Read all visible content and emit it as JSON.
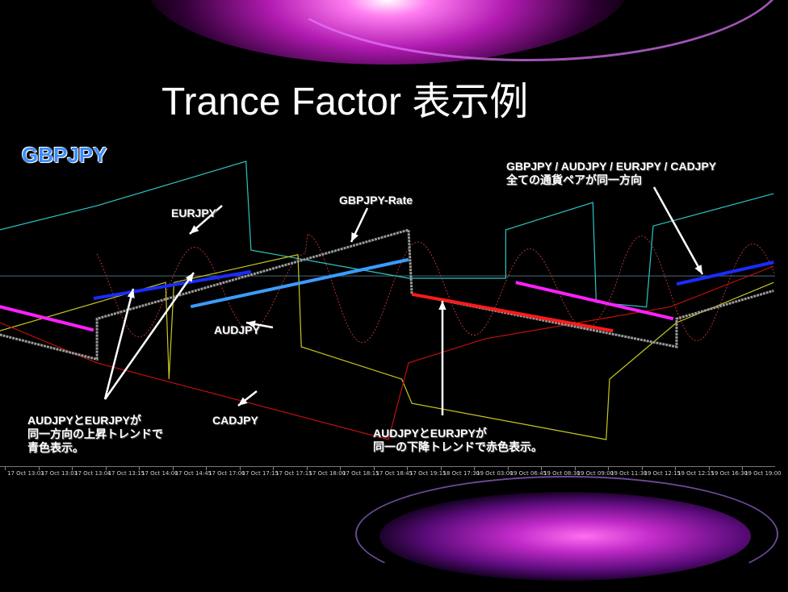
{
  "slide": {
    "title": "Trance Factor 表示例",
    "symbol": "GBPJPY"
  },
  "annotations": {
    "eurjpy": "EURJPY",
    "gbpjpy_rate": "GBPJPY-Rate",
    "audjpy": "AUDJPY",
    "cadjpy": "CADJPY",
    "all_pairs_line1": "GBPJPY / AUDJPY / EURJPY / CADJPY",
    "all_pairs_line2": "全ての通貨ペアが同一方向",
    "up_line1": "AUDJPYとEURJPYが",
    "up_line2": "同一方向の上昇トレンドで",
    "up_line3": "青色表示。",
    "down_line1": "AUDJPYとEURJPYが",
    "down_line2": "同一の下降トレンドで赤色表示。"
  },
  "colors": {
    "background": "#000000",
    "eurjpy": "#2ec4c4",
    "audjpy": "#c8c820",
    "cadjpy": "#c01010",
    "gbpjpy_rate": "#9a9a9a",
    "trend_up": "#1a2cff",
    "trend_up_light": "#3a9cff",
    "trend_down": "#ff1a1a",
    "trend_neutral": "#ff20ff",
    "oscillator": "#e04040",
    "symbol_label": "#3a8cff"
  },
  "chart_data": {
    "type": "line",
    "title": "",
    "x_tick_labels": [
      "17 Oct 13:03",
      "17 Oct 13:03",
      "17 Oct 13:04",
      "17 Oct 13:15",
      "17 Oct 14:00",
      "17 Oct 14:45",
      "17 Oct 17:00",
      "17 Oct 17:15",
      "17 Oct 17:15",
      "17 Oct 18:00",
      "17 Oct 18:15",
      "17 Oct 18:45",
      "17 Oct 19:15",
      "18 Oct 17:30",
      "19 Oct 03:00",
      "19 Oct 06:45",
      "19 Oct 08:30",
      "19 Oct 09:00",
      "19 Oct 11:30",
      "19 Oct 12:15",
      "19 Oct 12:15",
      "19 Oct 16:30",
      "19 Oct 19:00"
    ],
    "y_axis": "none shown (relative levels)",
    "grid": false,
    "series": [
      {
        "name": "EURJPY",
        "color": "#2ec4c4",
        "points": [
          [
            -0.2,
            71.6
          ],
          [
            2.7,
            79
          ],
          [
            7.15,
            92.6
          ],
          [
            7.3,
            65.4
          ],
          [
            12,
            56.8
          ],
          [
            14.9,
            56.8
          ],
          [
            14.9,
            71.6
          ],
          [
            17.5,
            80
          ],
          [
            17.6,
            49.4
          ],
          [
            19.1,
            48
          ],
          [
            19.3,
            72.8
          ],
          [
            22.9,
            82.7
          ]
        ]
      },
      {
        "name": "AUDJPY",
        "color": "#c8c820",
        "points": [
          [
            -0.2,
            40.7
          ],
          [
            4.75,
            55.5
          ],
          [
            4.85,
            25.9
          ],
          [
            5.0,
            55.5
          ],
          [
            8.7,
            64
          ],
          [
            8.8,
            35.8
          ],
          [
            11.8,
            25.9
          ],
          [
            12.1,
            18.5
          ],
          [
            17.9,
            7.4
          ],
          [
            18.0,
            25.9
          ],
          [
            20.0,
            43.2
          ],
          [
            22.9,
            55.5
          ]
        ]
      },
      {
        "name": "CADJPY",
        "color": "#c01010",
        "points": [
          [
            -0.2,
            43.2
          ],
          [
            2.7,
            30.9
          ],
          [
            11.4,
            7.4
          ],
          [
            12.0,
            30.9
          ],
          [
            14.3,
            38.3
          ],
          [
            19.8,
            48
          ],
          [
            22.9,
            60.5
          ]
        ]
      },
      {
        "name": "GBPJPY-Rate",
        "color": "#9a9a9a",
        "points": [
          [
            -0.2,
            39.5
          ],
          [
            2.7,
            32
          ],
          [
            2.7,
            44.4
          ],
          [
            12,
            71.6
          ],
          [
            12.1,
            51.9
          ],
          [
            20,
            35.8
          ],
          [
            20,
            44.4
          ],
          [
            22.9,
            53
          ]
        ]
      }
    ],
    "trend_segments": [
      {
        "state": "neutral",
        "color": "#ff20ff",
        "from": [
          -0.2,
          48.1
        ],
        "to": [
          2.6,
          40.9
        ]
      },
      {
        "state": "up",
        "color": "#1a2cff",
        "from": [
          2.6,
          50.6
        ],
        "to": [
          7.3,
          58.8
        ]
      },
      {
        "state": "up",
        "color": "#3a9cff",
        "from": [
          5.5,
          48.1
        ],
        "to": [
          12,
          62.5
        ]
      },
      {
        "state": "down",
        "color": "#ff1a1a",
        "from": [
          12.1,
          51.9
        ],
        "to": [
          18.1,
          40.7
        ]
      },
      {
        "state": "neutral",
        "color": "#ff20ff",
        "from": [
          15.2,
          55.5
        ],
        "to": [
          19.9,
          44.4
        ]
      },
      {
        "state": "up",
        "color": "#1a2cff",
        "from": [
          20,
          55
        ],
        "to": [
          22.9,
          61.7
        ]
      }
    ],
    "current_price_line": 57.5
  }
}
